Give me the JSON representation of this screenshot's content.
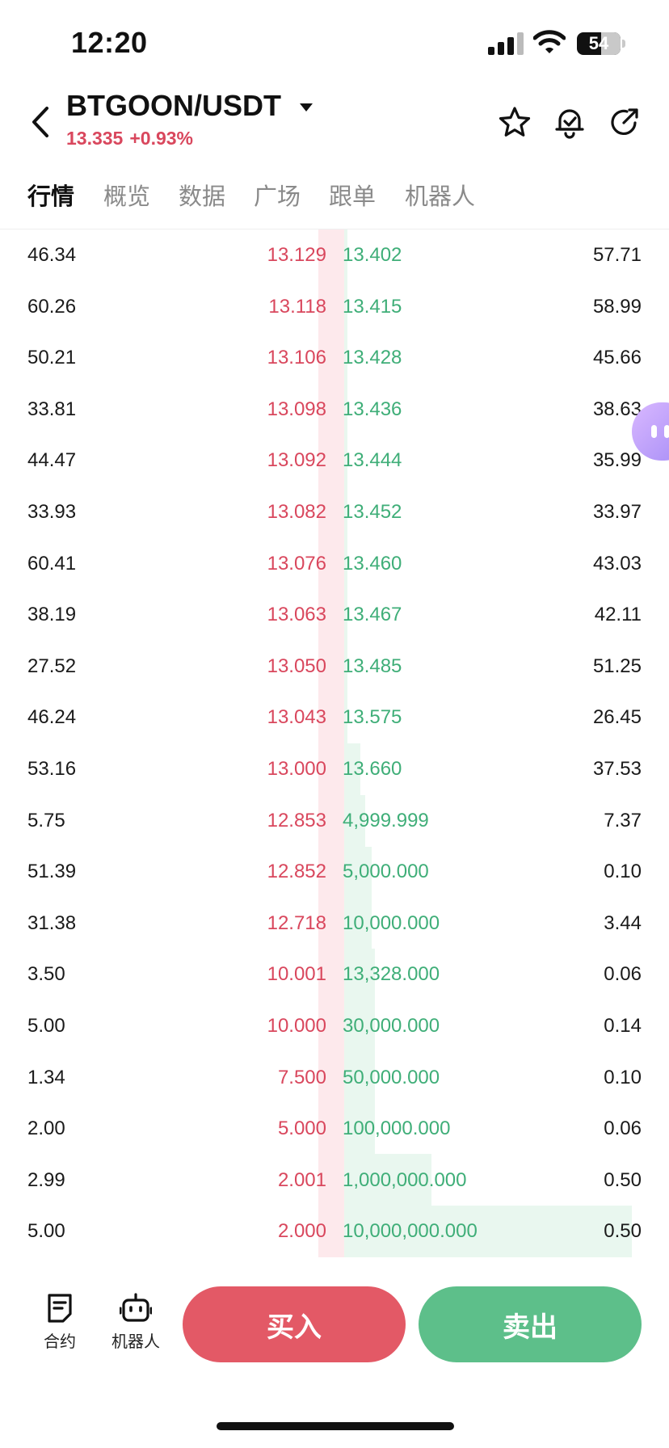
{
  "status_bar": {
    "time": "12:20",
    "battery": "54",
    "icons": [
      "signal-icon",
      "wifi-icon",
      "battery-icon"
    ]
  },
  "header": {
    "pair": "BTGOON/USDT",
    "last_price": "13.335",
    "change_pct": "+0.93%",
    "icons": [
      "back-icon",
      "dropdown-caret-icon",
      "star-icon",
      "price-alert-icon",
      "share-icon"
    ]
  },
  "tabs": [
    {
      "label": "行情",
      "active": true
    },
    {
      "label": "概览",
      "active": false
    },
    {
      "label": "数据",
      "active": false
    },
    {
      "label": "广场",
      "active": false
    },
    {
      "label": "跟单",
      "active": false
    },
    {
      "label": "机器人",
      "active": false
    }
  ],
  "order_book": {
    "rows": [
      {
        "bid_qty": "46.34",
        "bid_price": "13.129",
        "ask_price": "13.402",
        "ask_qty": "57.71"
      },
      {
        "bid_qty": "60.26",
        "bid_price": "13.118",
        "ask_price": "13.415",
        "ask_qty": "58.99"
      },
      {
        "bid_qty": "50.21",
        "bid_price": "13.106",
        "ask_price": "13.428",
        "ask_qty": "45.66"
      },
      {
        "bid_qty": "33.81",
        "bid_price": "13.098",
        "ask_price": "13.436",
        "ask_qty": "38.63"
      },
      {
        "bid_qty": "44.47",
        "bid_price": "13.092",
        "ask_price": "13.444",
        "ask_qty": "35.99"
      },
      {
        "bid_qty": "33.93",
        "bid_price": "13.082",
        "ask_price": "13.452",
        "ask_qty": "33.97"
      },
      {
        "bid_qty": "60.41",
        "bid_price": "13.076",
        "ask_price": "13.460",
        "ask_qty": "43.03"
      },
      {
        "bid_qty": "38.19",
        "bid_price": "13.063",
        "ask_price": "13.467",
        "ask_qty": "42.11"
      },
      {
        "bid_qty": "27.52",
        "bid_price": "13.050",
        "ask_price": "13.485",
        "ask_qty": "51.25"
      },
      {
        "bid_qty": "46.24",
        "bid_price": "13.043",
        "ask_price": "13.575",
        "ask_qty": "26.45"
      },
      {
        "bid_qty": "53.16",
        "bid_price": "13.000",
        "ask_price": "13.660",
        "ask_qty": "37.53"
      },
      {
        "bid_qty": "5.75",
        "bid_price": "12.853",
        "ask_price": "4,999.999",
        "ask_qty": "7.37"
      },
      {
        "bid_qty": "51.39",
        "bid_price": "12.852",
        "ask_price": "5,000.000",
        "ask_qty": "0.10"
      },
      {
        "bid_qty": "31.38",
        "bid_price": "12.718",
        "ask_price": "10,000.000",
        "ask_qty": "3.44"
      },
      {
        "bid_qty": "3.50",
        "bid_price": "10.001",
        "ask_price": "13,328.000",
        "ask_qty": "0.06"
      },
      {
        "bid_qty": "5.00",
        "bid_price": "10.000",
        "ask_price": "30,000.000",
        "ask_qty": "0.14"
      },
      {
        "bid_qty": "1.34",
        "bid_price": "7.500",
        "ask_price": "50,000.000",
        "ask_qty": "0.10"
      },
      {
        "bid_qty": "2.00",
        "bid_price": "5.000",
        "ask_price": "100,000.000",
        "ask_qty": "0.06"
      },
      {
        "bid_qty": "2.99",
        "bid_price": "2.001",
        "ask_price": "1,000,000.000",
        "ask_qty": "0.50"
      },
      {
        "bid_qty": "5.00",
        "bid_price": "2.000",
        "ask_price": "10,000,000.000",
        "ask_qty": "0.50"
      }
    ]
  },
  "bottom_bar": {
    "contract_label": "合约",
    "robot_label": "机器人",
    "buy_label": "买入",
    "sell_label": "卖出"
  },
  "colors": {
    "up_red": "#d9475d",
    "down_green": "#3fae78",
    "buy_button": "#e35966",
    "sell_button": "#5dbf8a",
    "bid_depth": "#fde9ec",
    "ask_depth": "#e9f7ef"
  }
}
